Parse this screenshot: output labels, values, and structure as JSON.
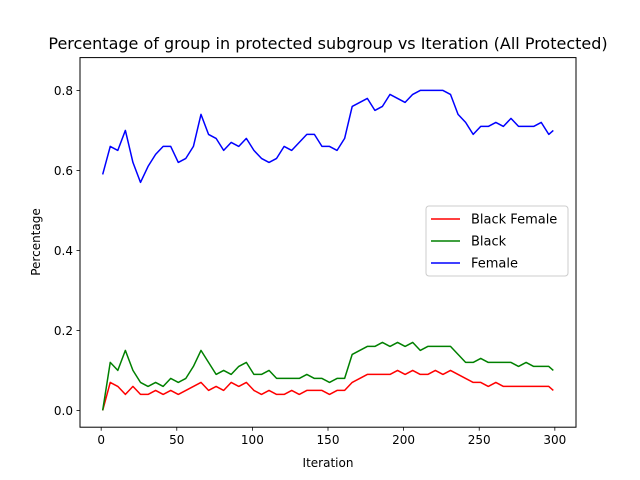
{
  "chart_data": {
    "type": "line",
    "title": "Percentage of group in protected subgroup vs Iteration (All Protected)",
    "xlabel": "Iteration",
    "ylabel": "Percentage",
    "xlim": [
      -14,
      314
    ],
    "ylim": [
      -0.042,
      0.882
    ],
    "xticks": [
      0,
      50,
      100,
      150,
      200,
      250,
      300
    ],
    "yticks": [
      0.0,
      0.2,
      0.4,
      0.6,
      0.8
    ],
    "xtick_labels": [
      "0",
      "50",
      "100",
      "150",
      "200",
      "250",
      "300"
    ],
    "ytick_labels": [
      "0.0",
      "0.2",
      "0.4",
      "0.6",
      "0.8"
    ],
    "grid": false,
    "legend_position": "center-right",
    "x": [
      1,
      6,
      11,
      16,
      21,
      26,
      31,
      36,
      41,
      46,
      51,
      56,
      61,
      66,
      71,
      76,
      81,
      86,
      91,
      96,
      101,
      106,
      111,
      116,
      121,
      126,
      131,
      136,
      141,
      146,
      151,
      156,
      161,
      166,
      171,
      176,
      181,
      186,
      191,
      196,
      201,
      206,
      211,
      216,
      221,
      226,
      231,
      236,
      241,
      246,
      251,
      256,
      261,
      266,
      271,
      276,
      281,
      286,
      291,
      296,
      299
    ],
    "series": [
      {
        "name": "Black Female",
        "color": "#ff0000",
        "values": [
          0.0,
          0.07,
          0.06,
          0.04,
          0.06,
          0.04,
          0.04,
          0.05,
          0.04,
          0.05,
          0.04,
          0.05,
          0.06,
          0.07,
          0.05,
          0.06,
          0.05,
          0.07,
          0.06,
          0.07,
          0.05,
          0.04,
          0.05,
          0.04,
          0.04,
          0.05,
          0.04,
          0.05,
          0.05,
          0.05,
          0.04,
          0.05,
          0.05,
          0.07,
          0.08,
          0.09,
          0.09,
          0.09,
          0.09,
          0.1,
          0.09,
          0.1,
          0.09,
          0.09,
          0.1,
          0.09,
          0.1,
          0.09,
          0.08,
          0.07,
          0.07,
          0.06,
          0.07,
          0.06,
          0.06,
          0.06,
          0.06,
          0.06,
          0.06,
          0.06,
          0.05
        ]
      },
      {
        "name": "Black",
        "color": "#008000",
        "values": [
          0.0,
          0.12,
          0.1,
          0.15,
          0.1,
          0.07,
          0.06,
          0.07,
          0.06,
          0.08,
          0.07,
          0.08,
          0.11,
          0.15,
          0.12,
          0.09,
          0.1,
          0.09,
          0.11,
          0.12,
          0.09,
          0.09,
          0.1,
          0.08,
          0.08,
          0.08,
          0.08,
          0.09,
          0.08,
          0.08,
          0.07,
          0.08,
          0.08,
          0.14,
          0.15,
          0.16,
          0.16,
          0.17,
          0.16,
          0.17,
          0.16,
          0.17,
          0.15,
          0.16,
          0.16,
          0.16,
          0.16,
          0.14,
          0.12,
          0.12,
          0.13,
          0.12,
          0.12,
          0.12,
          0.12,
          0.11,
          0.12,
          0.11,
          0.11,
          0.11,
          0.1
        ]
      },
      {
        "name": "Female",
        "color": "#0000ff",
        "values": [
          0.59,
          0.66,
          0.65,
          0.7,
          0.62,
          0.57,
          0.61,
          0.64,
          0.66,
          0.66,
          0.62,
          0.63,
          0.66,
          0.74,
          0.69,
          0.68,
          0.65,
          0.67,
          0.66,
          0.68,
          0.65,
          0.63,
          0.62,
          0.63,
          0.66,
          0.65,
          0.67,
          0.69,
          0.69,
          0.66,
          0.66,
          0.65,
          0.68,
          0.76,
          0.77,
          0.78,
          0.75,
          0.76,
          0.79,
          0.78,
          0.77,
          0.79,
          0.8,
          0.8,
          0.8,
          0.8,
          0.79,
          0.74,
          0.72,
          0.69,
          0.71,
          0.71,
          0.72,
          0.71,
          0.73,
          0.71,
          0.71,
          0.71,
          0.72,
          0.69,
          0.7
        ]
      }
    ]
  }
}
